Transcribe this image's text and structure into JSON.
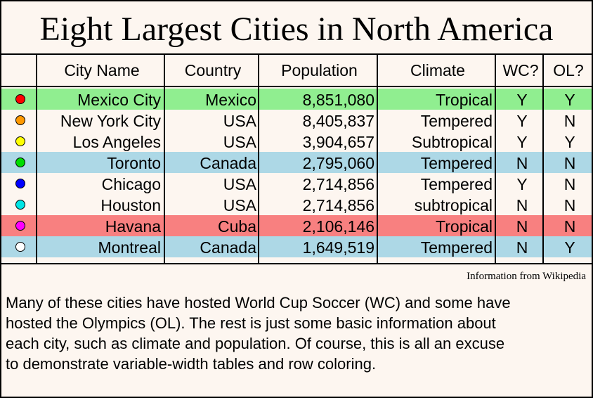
{
  "title": "Eight Largest Cities in North America",
  "headers": [
    "City Name",
    "Country",
    "Population",
    "Climate",
    "WC?",
    "OL?"
  ],
  "rows": [
    {
      "dot_color": "#ff0000",
      "bg": "#90ee90",
      "city": "Mexico City",
      "country": "Mexico",
      "population": "8,851,080",
      "climate": "Tropical",
      "wc": "Y",
      "ol": "Y"
    },
    {
      "dot_color": "#ff9900",
      "bg": "#fdf6f0",
      "city": "New York City",
      "country": "USA",
      "population": "8,405,837",
      "climate": "Tempered",
      "wc": "Y",
      "ol": "N"
    },
    {
      "dot_color": "#ffff00",
      "bg": "#fdf6f0",
      "city": "Los Angeles",
      "country": "USA",
      "population": "3,904,657",
      "climate": "Subtropical",
      "wc": "Y",
      "ol": "Y"
    },
    {
      "dot_color": "#00dd00",
      "bg": "#add8e6",
      "city": "Toronto",
      "country": "Canada",
      "population": "2,795,060",
      "climate": "Tempered",
      "wc": "N",
      "ol": "N"
    },
    {
      "dot_color": "#0000ff",
      "bg": "#fdf6f0",
      "city": "Chicago",
      "country": "USA",
      "population": "2,714,856",
      "climate": "Tempered",
      "wc": "Y",
      "ol": "N"
    },
    {
      "dot_color": "#00e5e5",
      "bg": "#fdf6f0",
      "city": "Houston",
      "country": "USA",
      "population": "2,714,856",
      "climate": "subtropical",
      "wc": "N",
      "ol": "N"
    },
    {
      "dot_color": "#ff00ff",
      "bg": "#f88080",
      "city": "Havana",
      "country": "Cuba",
      "population": "2,106,146",
      "climate": "Tropical",
      "wc": "N",
      "ol": "N"
    },
    {
      "dot_color": "#ffffff",
      "bg": "#add8e6",
      "city": "Montreal",
      "country": "Canada",
      "population": "1,649,519",
      "climate": "Tempered",
      "wc": "N",
      "ol": "Y"
    }
  ],
  "source": "Information from Wikipedia",
  "paragraph": [
    "Many of these cities have hosted World Cup Soccer (WC) and some have",
    "hosted the Olympics (OL).  The rest is just some basic information about",
    "each city, such as climate and population.  Of course, this is all an excuse",
    "to demonstrate variable-width tables and row coloring."
  ]
}
